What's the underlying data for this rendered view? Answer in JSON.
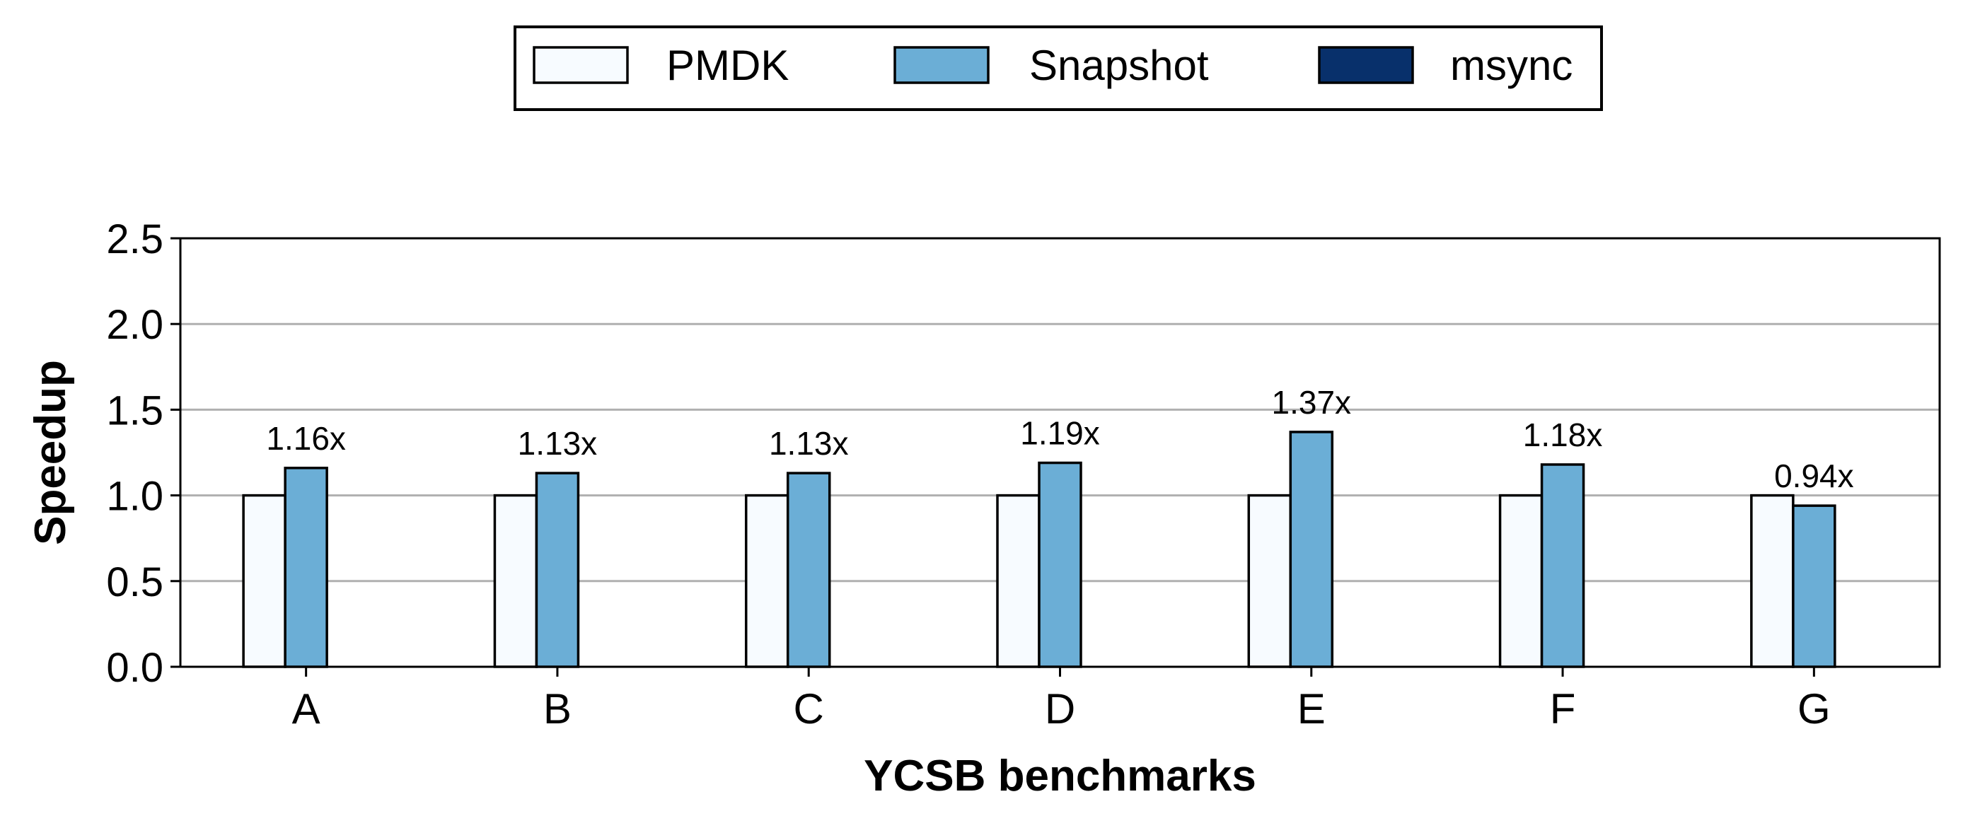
{
  "chart_data": {
    "type": "bar",
    "categories": [
      "A",
      "B",
      "C",
      "D",
      "E",
      "F",
      "G"
    ],
    "series": [
      {
        "name": "PMDK",
        "values": [
          1.0,
          1.0,
          1.0,
          1.0,
          1.0,
          1.0,
          1.0
        ],
        "color": "#f7fbff"
      },
      {
        "name": "Snapshot",
        "values": [
          1.16,
          1.13,
          1.13,
          1.19,
          1.37,
          1.18,
          0.94
        ],
        "color": "#6baed6"
      },
      {
        "name": "msync",
        "values": [
          0.0,
          0.0,
          0.0,
          0.0,
          0.0,
          0.0,
          0.0
        ],
        "color": "#08306b"
      }
    ],
    "data_labels": [
      "1.16x",
      "1.13x",
      "1.13x",
      "1.19x",
      "1.37x",
      "1.18x",
      "0.94x"
    ],
    "xlabel": "YCSB benchmarks",
    "ylabel": "Speedup",
    "ylim": [
      0,
      2.5
    ],
    "yticks": [
      0.0,
      0.5,
      1.0,
      1.5,
      2.0,
      2.5
    ],
    "ytick_labels": [
      "0.0",
      "0.5",
      "1.0",
      "1.5",
      "2.0",
      "2.5"
    ],
    "grid": "horizontal",
    "legend_position": "top-center"
  }
}
